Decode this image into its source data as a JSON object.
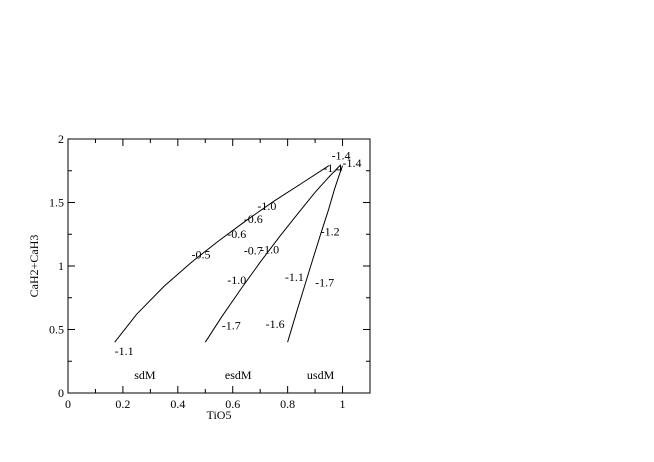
{
  "chart_data": {
    "type": "line",
    "title": "",
    "xlabel": "TiO5",
    "ylabel": "CaH2+CaH3",
    "xlim": [
      0,
      1.1
    ],
    "ylim": [
      0,
      2
    ],
    "xticks": [
      0,
      0.2,
      0.4,
      0.6,
      0.8,
      1
    ],
    "xtick_labels": [
      "0",
      "0.2",
      "0.4",
      "0.6",
      "0.8",
      "1"
    ],
    "yticks": [
      0,
      0.5,
      1,
      1.5,
      2
    ],
    "ytick_labels": [
      "0",
      "0.5",
      "1",
      "1.5",
      "2"
    ],
    "grid": false,
    "series": [
      {
        "x": [
          0.17,
          0.25,
          0.35,
          0.45,
          0.55,
          0.65,
          0.75,
          0.85,
          0.95
        ],
        "y": [
          0.4,
          0.62,
          0.84,
          1.03,
          1.2,
          1.36,
          1.51,
          1.65,
          1.79
        ]
      },
      {
        "x": [
          0.5,
          0.56,
          0.63,
          0.7,
          0.77,
          0.84,
          0.9,
          0.95,
          0.99
        ],
        "y": [
          0.4,
          0.6,
          0.82,
          1.03,
          1.23,
          1.42,
          1.58,
          1.7,
          1.79
        ]
      },
      {
        "x": [
          0.8,
          0.83,
          0.86,
          0.89,
          0.92,
          0.95,
          0.97,
          0.99,
          1.0
        ],
        "y": [
          0.4,
          0.62,
          0.83,
          1.04,
          1.25,
          1.45,
          1.6,
          1.73,
          1.79
        ]
      }
    ],
    "annotations": [
      {
        "text": "-1.1",
        "x": 0.17,
        "y": 0.3
      },
      {
        "text": "-0.5",
        "x": 0.45,
        "y": 1.06
      },
      {
        "text": "-0.6",
        "x": 0.58,
        "y": 1.22
      },
      {
        "text": "-0.6",
        "x": 0.64,
        "y": 1.34
      },
      {
        "text": "-1.0",
        "x": 0.69,
        "y": 1.44
      },
      {
        "text": "-1.4",
        "x": 0.96,
        "y": 1.84
      },
      {
        "text": "-1.4",
        "x": 1.0,
        "y": 1.78
      },
      {
        "text": "-1.4",
        "x": 0.93,
        "y": 1.74
      },
      {
        "text": "-1.0",
        "x": 0.58,
        "y": 0.86
      },
      {
        "text": "-0.7",
        "x": 0.64,
        "y": 1.09
      },
      {
        "text": "-1.0",
        "x": 0.7,
        "y": 1.1
      },
      {
        "text": "-1.7",
        "x": 0.56,
        "y": 0.5
      },
      {
        "text": "-1.1",
        "x": 0.79,
        "y": 0.88
      },
      {
        "text": "-1.7",
        "x": 0.9,
        "y": 0.84
      },
      {
        "text": "-1.2",
        "x": 0.92,
        "y": 1.24
      },
      {
        "text": "-1.6",
        "x": 0.72,
        "y": 0.51
      }
    ],
    "regions": [
      {
        "text": "sdM",
        "x": 0.28,
        "y": 0.11
      },
      {
        "text": "esdM",
        "x": 0.62,
        "y": 0.11
      },
      {
        "text": "usdM",
        "x": 0.92,
        "y": 0.11
      }
    ]
  }
}
